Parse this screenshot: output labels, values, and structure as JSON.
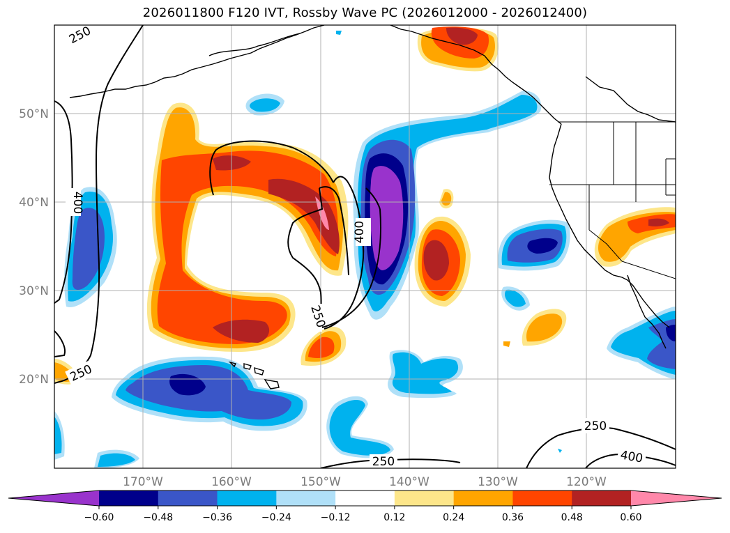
{
  "title": "2026011800 F120 IVT, Rossby Wave PC (2026012000 - 2026012400)",
  "map": {
    "lat_labels": [
      "50°N",
      "40°N",
      "30°N",
      "20°N"
    ],
    "lon_labels": [
      "170°W",
      "160°W",
      "150°W",
      "140°W",
      "130°W",
      "120°W"
    ],
    "contour_labels": [
      "250",
      "400",
      "400",
      "250",
      "250",
      "250",
      "250",
      "400"
    ],
    "contour_levels": [
      250,
      400
    ],
    "gridlines": true
  },
  "colorbar": {
    "ticks": [
      "−0.60",
      "−0.48",
      "−0.36",
      "−0.24",
      "−0.12",
      "0.12",
      "0.24",
      "0.36",
      "0.48",
      "0.60"
    ],
    "colors": [
      "#9933cc",
      "#00008b",
      "#3a56c8",
      "#00b2ee",
      "#b0e0f8",
      "#ffffff",
      "#fde68a",
      "#ffa500",
      "#ff4500",
      "#b22222",
      "#ff88aa"
    ]
  },
  "palette": {
    "dark_purple": "#9933cc",
    "navy": "#00008b",
    "royal": "#3a56c8",
    "deep_sky": "#00b2ee",
    "light_blue": "#b0e0f8",
    "light_yellow": "#fde68a",
    "orange": "#ffa500",
    "orange_red": "#ff4500",
    "firebrick": "#b22222",
    "pink": "#ff88aa"
  }
}
